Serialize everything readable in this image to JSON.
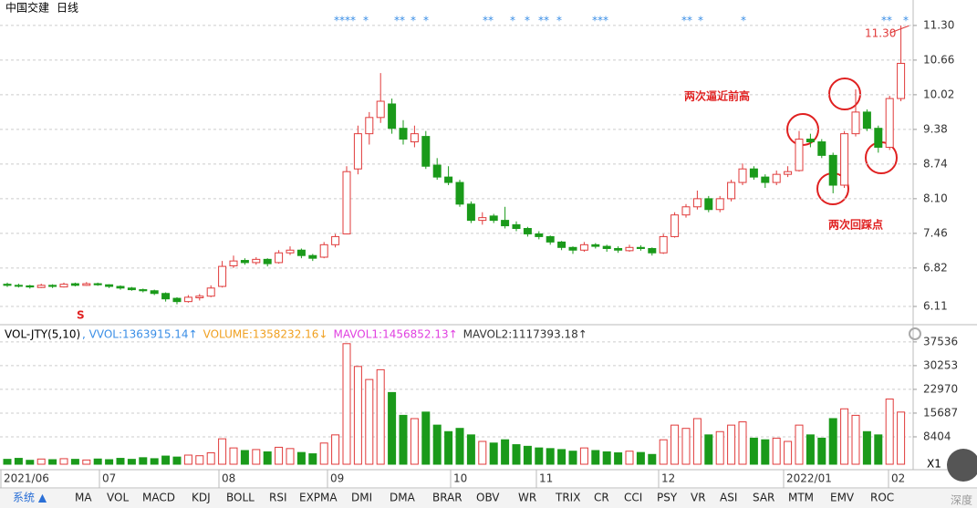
{
  "chart_data": {
    "type": "candlestick",
    "title": "中国交建",
    "subtitle": "日线",
    "annotations": [
      "两次逼近前高",
      "两次回踩点"
    ],
    "max_label": "11.30",
    "signal_marker": "S",
    "signals": [
      "****",
      "*",
      "**",
      "*",
      "*",
      "**",
      "*",
      "*",
      "**",
      "*",
      "***",
      "**",
      "*",
      "*",
      "**",
      "*"
    ],
    "up_color": "#e03a3a",
    "down_color": "#1a9a1a",
    "grid": true,
    "ylim": [
      5.79,
      11.77
    ],
    "yticks": [
      {
        "value": 11.3,
        "label": "11.30"
      },
      10.66,
      10.02,
      9.38,
      8.74,
      {
        "value": 8.1,
        "label": "8.10"
      },
      7.46,
      6.82,
      6.11
    ],
    "x_labels": [
      "2021/06",
      "07",
      "08",
      "09",
      "10",
      "11",
      "12",
      "2022/01",
      "02"
    ],
    "candles": [
      [
        6.52,
        6.55,
        6.47,
        6.5
      ],
      [
        6.5,
        6.53,
        6.46,
        6.49
      ],
      [
        6.49,
        6.51,
        6.44,
        6.47
      ],
      [
        6.46,
        6.53,
        6.45,
        6.5
      ],
      [
        6.5,
        6.52,
        6.45,
        6.48
      ],
      [
        6.47,
        6.55,
        6.46,
        6.52
      ],
      [
        6.53,
        6.55,
        6.48,
        6.5
      ],
      [
        6.5,
        6.56,
        6.49,
        6.53
      ],
      [
        6.53,
        6.55,
        6.49,
        6.51
      ],
      [
        6.51,
        6.52,
        6.45,
        6.48
      ],
      [
        6.48,
        6.5,
        6.42,
        6.45
      ],
      [
        6.45,
        6.47,
        6.4,
        6.42
      ],
      [
        6.42,
        6.44,
        6.37,
        6.4
      ],
      [
        6.4,
        6.42,
        6.32,
        6.35
      ],
      [
        6.35,
        6.37,
        6.2,
        6.25
      ],
      [
        6.26,
        6.28,
        6.15,
        6.2
      ],
      [
        6.2,
        6.32,
        6.18,
        6.28
      ],
      [
        6.27,
        6.34,
        6.22,
        6.3
      ],
      [
        6.3,
        6.5,
        6.28,
        6.45
      ],
      [
        6.48,
        6.95,
        6.46,
        6.85
      ],
      [
        6.86,
        7.05,
        6.82,
        6.95
      ],
      [
        6.96,
        7,
        6.88,
        6.92
      ],
      [
        6.92,
        7.02,
        6.88,
        6.98
      ],
      [
        6.98,
        7,
        6.85,
        6.9
      ],
      [
        6.92,
        7.15,
        6.9,
        7.1
      ],
      [
        7.1,
        7.22,
        7.06,
        7.15
      ],
      [
        7.15,
        7.18,
        7,
        7.05
      ],
      [
        7.05,
        7.08,
        6.95,
        7
      ],
      [
        7.02,
        7.3,
        7,
        7.25
      ],
      [
        7.25,
        7.45,
        7.2,
        7.4
      ],
      [
        7.45,
        8.7,
        7.44,
        8.6
      ],
      [
        8.65,
        9.45,
        8.55,
        9.3
      ],
      [
        9.3,
        9.7,
        9.1,
        9.6
      ],
      [
        9.6,
        10.42,
        9.5,
        9.9
      ],
      [
        9.85,
        9.95,
        9.3,
        9.4
      ],
      [
        9.4,
        9.55,
        9.1,
        9.2
      ],
      [
        9.15,
        9.45,
        9.05,
        9.3
      ],
      [
        9.25,
        9.35,
        8.65,
        8.7
      ],
      [
        8.72,
        8.85,
        8.45,
        8.5
      ],
      [
        8.5,
        8.7,
        8.35,
        8.4
      ],
      [
        8.4,
        8.45,
        7.95,
        8
      ],
      [
        8,
        8.05,
        7.65,
        7.7
      ],
      [
        7.7,
        7.85,
        7.62,
        7.75
      ],
      [
        7.78,
        7.82,
        7.65,
        7.7
      ],
      [
        7.7,
        7.95,
        7.55,
        7.6
      ],
      [
        7.62,
        7.68,
        7.5,
        7.55
      ],
      [
        7.55,
        7.58,
        7.4,
        7.45
      ],
      [
        7.45,
        7.5,
        7.35,
        7.4
      ],
      [
        7.4,
        7.42,
        7.25,
        7.3
      ],
      [
        7.3,
        7.32,
        7.15,
        7.2
      ],
      [
        7.2,
        7.22,
        7.08,
        7.15
      ],
      [
        7.15,
        7.3,
        7.12,
        7.25
      ],
      [
        7.25,
        7.28,
        7.18,
        7.22
      ],
      [
        7.22,
        7.25,
        7.12,
        7.18
      ],
      [
        7.18,
        7.22,
        7.1,
        7.15
      ],
      [
        7.14,
        7.25,
        7.12,
        7.2
      ],
      [
        7.2,
        7.24,
        7.14,
        7.18
      ],
      [
        7.18,
        7.2,
        7.05,
        7.1
      ],
      [
        7.1,
        7.45,
        7.08,
        7.4
      ],
      [
        7.4,
        7.85,
        7.38,
        7.8
      ],
      [
        7.8,
        8,
        7.75,
        7.95
      ],
      [
        7.95,
        8.25,
        7.9,
        8.1
      ],
      [
        8.1,
        8.15,
        7.85,
        7.9
      ],
      [
        7.9,
        8.15,
        7.85,
        8.1
      ],
      [
        8.1,
        8.45,
        8.05,
        8.4
      ],
      [
        8.4,
        8.75,
        8.35,
        8.65
      ],
      [
        8.65,
        8.7,
        8.45,
        8.5
      ],
      [
        8.5,
        8.55,
        8.3,
        8.4
      ],
      [
        8.4,
        8.62,
        8.35,
        8.55
      ],
      [
        8.55,
        8.7,
        8.5,
        8.6
      ],
      [
        8.62,
        9.35,
        8.6,
        9.2
      ],
      [
        9.2,
        9.3,
        9.05,
        9.15
      ],
      [
        9.15,
        9.2,
        8.85,
        8.9
      ],
      [
        8.9,
        8.95,
        8.2,
        8.35
      ],
      [
        8.35,
        9.35,
        8.3,
        9.3
      ],
      [
        9.3,
        10.12,
        9.25,
        9.7
      ],
      [
        9.7,
        9.75,
        9.35,
        9.4
      ],
      [
        9.4,
        9.45,
        8.95,
        9.05
      ],
      [
        9.05,
        10,
        9,
        9.95
      ],
      [
        9.95,
        11.3,
        9.9,
        10.6
      ]
    ],
    "volume": {
      "title": "VOL-JTY(5,10)",
      "legend": [
        ", VVOL:1363915.14↑",
        "VOLUME:1358232.16↓",
        "MAVOL1:1456852.13↑",
        "MAVOL2:1117393.18↑"
      ],
      "legend_colors": [
        "#3a8ee6",
        "#f0a020",
        "#e040e0",
        "#333333"
      ],
      "ylim": [
        0,
        41700
      ],
      "yticks": [
        37536,
        30253,
        22970,
        15687,
        8404
      ],
      "values": [
        1500,
        1800,
        1200,
        1600,
        1400,
        1700,
        1500,
        1300,
        1600,
        1400,
        1800,
        1500,
        2000,
        1700,
        2500,
        2200,
        2800,
        2600,
        3500,
        7800,
        5000,
        4200,
        4500,
        3800,
        5200,
        4800,
        3600,
        3200,
        6500,
        9000,
        37000,
        30000,
        26000,
        29000,
        22000,
        15000,
        14000,
        16000,
        12000,
        10000,
        11000,
        9000,
        7000,
        6500,
        7500,
        6000,
        5500,
        5000,
        4800,
        4500,
        4000,
        5000,
        4200,
        3800,
        3500,
        4000,
        3600,
        3000,
        7500,
        12000,
        11000,
        14000,
        9000,
        10000,
        12000,
        13000,
        8000,
        7500,
        8000,
        7000,
        12000,
        9000,
        8000,
        14000,
        17000,
        15000,
        10000,
        9000,
        20000,
        16000
      ]
    },
    "toolbar": [
      "系统 ▲",
      "MA",
      "VOL",
      "MACD",
      "KDJ",
      "BOLL",
      "RSI",
      "EXPMA",
      "DMI",
      "DMA",
      "BRAR",
      "OBV",
      "WR",
      "TRIX",
      "CR",
      "CCI",
      "PSY",
      "VR",
      "ASI",
      "SAR",
      "MTM",
      "EMV",
      "ROC"
    ],
    "corner_labels": [
      "X1",
      "深度"
    ]
  }
}
